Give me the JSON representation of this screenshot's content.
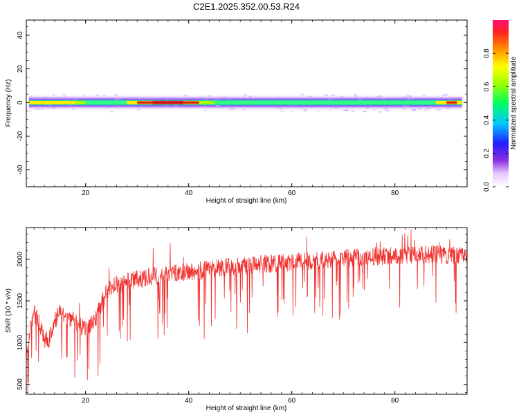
{
  "title": "C2E1.2025.352.00.53.R24",
  "colors": {
    "snr_line": "#f0302e",
    "axis": "#000000",
    "ridge_core": "#e8302a"
  },
  "chart_data": [
    {
      "type": "heatmap",
      "xlabel": "Height of straight line (km)",
      "ylabel": "Frequency (Hz)",
      "xlim": [
        8.5,
        94
      ],
      "ylim": [
        -50,
        49
      ],
      "x_ticks": [
        "20",
        "40",
        "60",
        "80"
      ],
      "y_ticks": [
        "40",
        "20",
        "0",
        "-20",
        "-40"
      ],
      "colorbar": {
        "label": "Normalized spectral amplitude",
        "range": [
          0,
          1
        ],
        "ticks": [
          "0.0",
          "0.2",
          "0.4",
          "0.6",
          "0.8"
        ]
      },
      "ridge_center_hz": 0,
      "ridge_amplitude_profile": {
        "height_km": [
          9,
          10,
          12,
          15,
          18,
          20,
          22,
          25,
          28,
          30,
          33,
          36,
          39,
          42,
          45,
          50,
          55,
          60,
          65,
          70,
          75,
          80,
          85,
          88,
          90,
          92,
          93
        ],
        "amplitude": [
          0.85,
          0.75,
          0.8,
          0.8,
          0.7,
          0.55,
          0.55,
          0.5,
          0.6,
          0.85,
          0.95,
          1.0,
          0.95,
          0.8,
          0.6,
          0.55,
          0.55,
          0.55,
          0.6,
          0.6,
          0.55,
          0.55,
          0.5,
          0.65,
          0.85,
          0.85,
          0.75
        ]
      }
    },
    {
      "type": "line",
      "xlabel": "Height of straight line (km)",
      "ylabel": "SNR (10 * v/v)",
      "xlim": [
        8.5,
        94
      ],
      "ylim": [
        380,
        2380
      ],
      "x_ticks": [
        "20",
        "40",
        "60",
        "80"
      ],
      "y_ticks": [
        "2000",
        "1500",
        "1000",
        "500"
      ],
      "series": [
        {
          "trend_x": [
            8.5,
            9,
            10,
            11,
            12,
            13,
            14,
            15,
            16,
            17,
            18,
            19,
            20,
            21,
            22,
            23,
            24,
            25,
            26,
            27,
            28,
            30,
            32,
            34,
            36,
            38,
            40,
            42,
            44,
            46,
            48,
            50,
            52,
            54,
            56,
            58,
            60,
            62,
            64,
            66,
            68,
            70,
            72,
            74,
            76,
            78,
            80,
            82,
            84,
            86,
            88,
            90,
            92,
            94
          ],
          "trend_y": [
            850,
            1050,
            1350,
            1250,
            1000,
            1050,
            1250,
            1350,
            1300,
            1280,
            1250,
            1200,
            1150,
            1200,
            1300,
            1450,
            1600,
            1650,
            1700,
            1720,
            1740,
            1760,
            1780,
            1800,
            1820,
            1840,
            1850,
            1860,
            1880,
            1900,
            1910,
            1920,
            1930,
            1940,
            1950,
            1960,
            1960,
            1970,
            1980,
            1990,
            2000,
            2010,
            2020,
            2030,
            2030,
            2040,
            2040,
            2050,
            2050,
            2060,
            2060,
            2050,
            2040,
            2030
          ],
          "noise_amplitude": 110,
          "dip_minimum": 390,
          "peak_maximum": 2360
        }
      ]
    }
  ]
}
